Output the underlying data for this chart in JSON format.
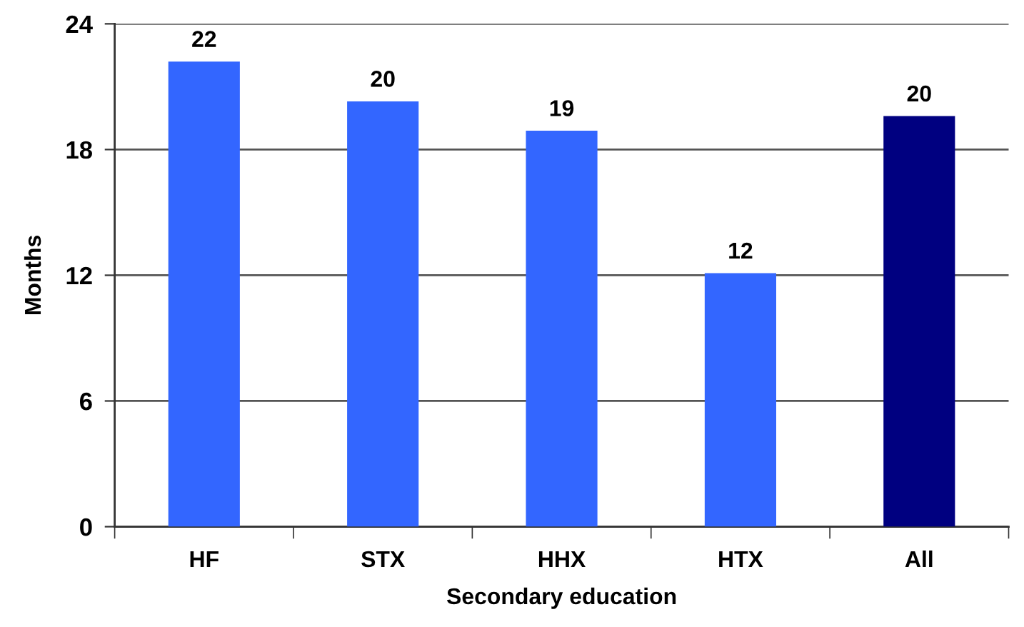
{
  "chart_data": {
    "type": "bar",
    "xlabel": "Secondary education",
    "ylabel": "Months",
    "categories": [
      "HF",
      "STX",
      "HHX",
      "HTX",
      "All"
    ],
    "values": [
      22.2,
      20.3,
      18.9,
      12.1,
      19.6
    ],
    "colors": [
      "#3366ff",
      "#3366ff",
      "#3366ff",
      "#3366ff",
      "#000080"
    ],
    "value_labels": [
      "22",
      "20",
      "19",
      "12",
      "20"
    ],
    "ylim": [
      0,
      24
    ],
    "yticks": [
      0,
      6,
      12,
      18,
      24
    ],
    "grid": "y"
  }
}
